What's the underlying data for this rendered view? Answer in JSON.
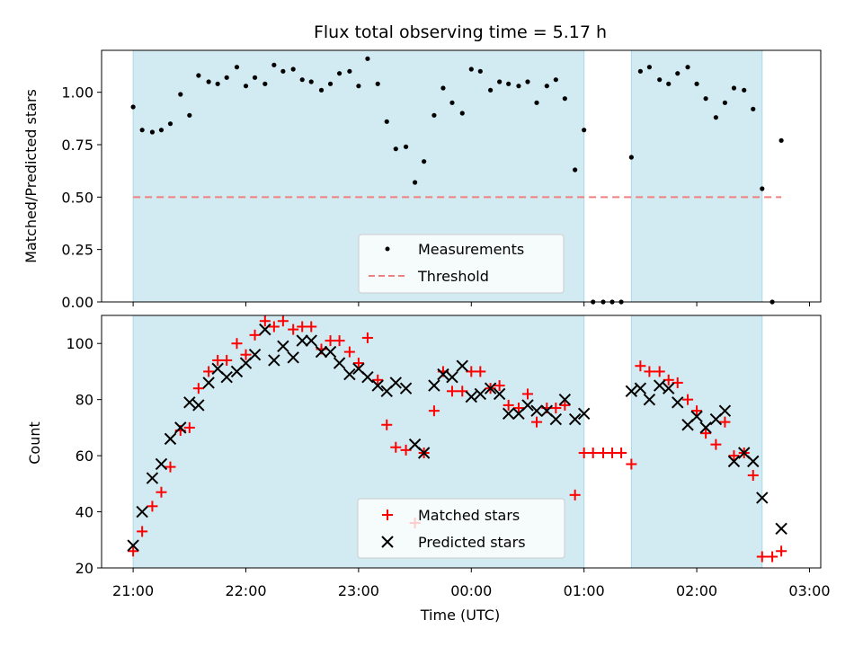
{
  "colors": {
    "band": "#add8e6",
    "measurement": "#000000",
    "threshold": "#f08080",
    "matched": "#ff0000",
    "predicted": "#000000"
  },
  "chart_data": [
    {
      "type": "scatter",
      "title": "Flux total observing time = 5.17 h",
      "xlabel": "",
      "ylabel": "Matched/Predicted stars",
      "xlim": [
        -0.28,
        6.1
      ],
      "ylim": [
        0,
        1.2
      ],
      "yticks": [
        "0.00",
        "0.25",
        "0.50",
        "0.75",
        "1.00"
      ],
      "ytick_values": [
        0,
        0.25,
        0.5,
        0.75,
        1.0
      ],
      "shaded_bands": [
        [
          0.0,
          4.0
        ],
        [
          4.42,
          5.58
        ]
      ],
      "threshold": {
        "name": "Threshold",
        "value": 0.5,
        "x": [
          0.0,
          5.75
        ]
      },
      "legend": "lower center",
      "series": [
        {
          "name": "Measurements",
          "x": [
            0.0,
            0.08,
            0.17,
            0.25,
            0.33,
            0.42,
            0.5,
            0.58,
            0.67,
            0.75,
            0.83,
            0.92,
            1.0,
            1.08,
            1.17,
            1.25,
            1.33,
            1.42,
            1.5,
            1.58,
            1.67,
            1.75,
            1.83,
            1.92,
            2.0,
            2.08,
            2.17,
            2.25,
            2.33,
            2.42,
            2.5,
            2.58,
            2.67,
            2.75,
            2.83,
            2.92,
            3.0,
            3.08,
            3.17,
            3.25,
            3.33,
            3.42,
            3.5,
            3.58,
            3.67,
            3.75,
            3.83,
            3.92,
            4.0,
            4.08,
            4.17,
            4.25,
            4.33,
            4.42,
            4.5,
            4.58,
            4.67,
            4.75,
            4.83,
            4.92,
            5.0,
            5.08,
            5.17,
            5.25,
            5.33,
            5.42,
            5.5,
            5.58,
            5.67,
            5.75
          ],
          "y": [
            0.93,
            0.82,
            0.81,
            0.82,
            0.85,
            0.99,
            0.89,
            1.08,
            1.05,
            1.04,
            1.07,
            1.12,
            1.03,
            1.07,
            1.04,
            1.13,
            1.1,
            1.11,
            1.06,
            1.05,
            1.01,
            1.04,
            1.09,
            1.1,
            1.03,
            1.16,
            1.04,
            0.86,
            0.73,
            0.74,
            0.57,
            0.67,
            0.89,
            1.02,
            0.95,
            0.9,
            1.11,
            1.1,
            1.01,
            1.05,
            1.04,
            1.03,
            1.05,
            0.95,
            1.03,
            1.06,
            0.97,
            0.63,
            0.82,
            0.0,
            0.0,
            0.0,
            0.0,
            0.69,
            1.1,
            1.12,
            1.06,
            1.04,
            1.09,
            1.12,
            1.04,
            0.97,
            0.88,
            0.95,
            1.02,
            1.01,
            0.92,
            0.54,
            0.0,
            0.77
          ]
        }
      ]
    },
    {
      "type": "scatter",
      "xlabel": "Time (UTC)",
      "ylabel": "Count",
      "xlim": [
        -0.28,
        6.1
      ],
      "ylim": [
        20,
        110
      ],
      "yticks": [
        "20",
        "40",
        "60",
        "80",
        "100"
      ],
      "ytick_values": [
        20,
        40,
        60,
        80,
        100
      ],
      "xticks": [
        "21:00",
        "22:00",
        "23:00",
        "00:00",
        "01:00",
        "02:00",
        "03:00"
      ],
      "xtick_values": [
        0,
        1,
        2,
        3,
        4,
        5,
        6
      ],
      "shaded_bands": [
        [
          0.0,
          4.0
        ],
        [
          4.42,
          5.58
        ]
      ],
      "legend": "lower center",
      "series": [
        {
          "name": "Matched stars",
          "x": [
            0.0,
            0.08,
            0.17,
            0.25,
            0.33,
            0.42,
            0.5,
            0.58,
            0.67,
            0.75,
            0.83,
            0.92,
            1.0,
            1.08,
            1.17,
            1.25,
            1.33,
            1.42,
            1.5,
            1.58,
            1.67,
            1.75,
            1.83,
            1.92,
            2.0,
            2.08,
            2.17,
            2.25,
            2.33,
            2.42,
            2.5,
            2.58,
            2.67,
            2.75,
            2.83,
            2.92,
            3.0,
            3.08,
            3.17,
            3.25,
            3.33,
            3.42,
            3.5,
            3.58,
            3.67,
            3.75,
            3.83,
            3.92,
            4.0,
            4.08,
            4.17,
            4.25,
            4.33,
            4.42,
            4.5,
            4.58,
            4.67,
            4.75,
            4.83,
            4.92,
            5.0,
            5.08,
            5.17,
            5.25,
            5.33,
            5.42,
            5.5,
            5.58,
            5.67,
            5.75
          ],
          "y": [
            26,
            33,
            42,
            47,
            56,
            69,
            70,
            84,
            90,
            94,
            94,
            100,
            96,
            103,
            108,
            106,
            108,
            105,
            106,
            106,
            98,
            101,
            101,
            97,
            93,
            102,
            87,
            71,
            63,
            62,
            36,
            61,
            76,
            90,
            83,
            83,
            90,
            90,
            84,
            85,
            78,
            77,
            82,
            72,
            77,
            77,
            78,
            46,
            61,
            61,
            61,
            61,
            61,
            57,
            92,
            90,
            90,
            87,
            86,
            80,
            76,
            68,
            64,
            72,
            60,
            61,
            53,
            24,
            24,
            26
          ]
        },
        {
          "name": "Predicted stars",
          "x": [
            0.0,
            0.08,
            0.17,
            0.25,
            0.33,
            0.42,
            0.5,
            0.58,
            0.67,
            0.75,
            0.83,
            0.92,
            1.0,
            1.08,
            1.17,
            1.25,
            1.33,
            1.42,
            1.5,
            1.58,
            1.67,
            1.75,
            1.83,
            1.92,
            2.0,
            2.08,
            2.17,
            2.25,
            2.33,
            2.42,
            2.5,
            2.58,
            2.67,
            2.75,
            2.83,
            2.92,
            3.0,
            3.08,
            3.17,
            3.25,
            3.33,
            3.42,
            3.5,
            3.58,
            3.67,
            3.75,
            3.83,
            3.92,
            4.0,
            4.42,
            4.5,
            4.58,
            4.67,
            4.75,
            4.83,
            4.92,
            5.0,
            5.08,
            5.17,
            5.25,
            5.33,
            5.42,
            5.5,
            5.58,
            5.67,
            5.75
          ],
          "y": [
            28,
            40,
            52,
            57,
            66,
            70,
            79,
            78,
            86,
            91,
            88,
            90,
            93,
            96,
            105,
            94,
            99,
            95,
            101,
            101,
            97,
            97,
            93,
            89,
            91,
            88,
            85,
            83,
            86,
            84,
            64,
            61,
            85,
            89,
            88,
            92,
            81,
            82,
            84,
            82,
            75,
            75,
            78,
            76,
            76,
            73,
            80,
            73,
            75,
            83,
            84,
            80,
            85,
            84,
            79,
            71,
            74,
            70,
            73,
            76,
            58,
            61,
            58,
            45,
            null,
            34
          ]
        }
      ]
    }
  ]
}
